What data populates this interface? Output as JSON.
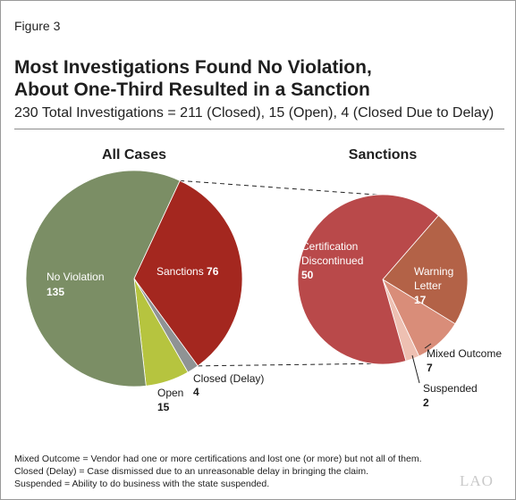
{
  "figure_label": "Figure 3",
  "title_line1": "Most Investigations Found No Violation,",
  "title_line2": "About One-Third Resulted in a Sanction",
  "subtitle": "230 Total Investigations = 211 (Closed), 15 (Open), 4 (Closed Due to Delay)",
  "notes": [
    "Mixed Outcome = Vendor had one or more certifications and lost one (or more) but not all of them.",
    "Closed (Delay) = Case dismissed due to an unreasonable delay in bringing the claim.",
    "Suspended = Ability to do business with the state suspended."
  ],
  "logo_text": "LAO",
  "chart_data": [
    {
      "type": "pie",
      "title": "All Cases",
      "slices": [
        {
          "label": "No Violation",
          "value": 135,
          "color": "#7b8e65"
        },
        {
          "label": "Sanctions",
          "value": 76,
          "color": "#a4271f"
        },
        {
          "label": "Closed (Delay)",
          "value": 4,
          "color": "#8f9394"
        },
        {
          "label": "Open",
          "value": 15,
          "color": "#b6c43f"
        }
      ]
    },
    {
      "type": "pie",
      "title": "Sanctions",
      "slices": [
        {
          "label": "Certification Discontinued",
          "value": 50,
          "color": "#b9494a"
        },
        {
          "label": "Warning Letter",
          "value": 17,
          "color": "#b36247"
        },
        {
          "label": "Mixed Outcome",
          "value": 7,
          "color": "#d98d79"
        },
        {
          "label": "Suspended",
          "value": 2,
          "color": "#eec0b2"
        }
      ]
    }
  ]
}
